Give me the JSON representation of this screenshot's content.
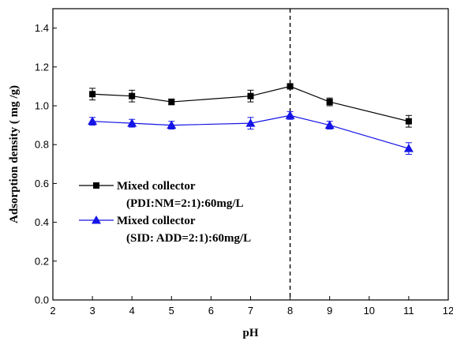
{
  "chart_data": {
    "type": "line",
    "xlabel": "pH",
    "ylabel": "Adsorption density ( mg /g)",
    "xlim": [
      2,
      12
    ],
    "ylim": [
      0.0,
      1.5
    ],
    "xticks": [
      2,
      3,
      4,
      5,
      6,
      7,
      8,
      9,
      10,
      11,
      12
    ],
    "yticks": [
      0.0,
      0.2,
      0.4,
      0.6,
      0.8,
      1.0,
      1.2,
      1.4
    ],
    "ytick_labels": [
      "0.0",
      "0.2",
      "0.4",
      "0.6",
      "0.8",
      "1.0",
      "1.2",
      "1.4"
    ],
    "xtick_labels": [
      "2",
      "3",
      "4",
      "5",
      "6",
      "7",
      "8",
      "9",
      "10",
      "11",
      "12"
    ],
    "reference_line": {
      "x": 8,
      "style": "dashed"
    },
    "series": [
      {
        "name": "Mixed collector",
        "name_line2": "(PDI:NM=2:1):60mg/L",
        "marker": "square",
        "color": "#000000",
        "x": [
          3,
          4,
          5,
          7,
          8,
          9,
          11
        ],
        "y": [
          1.06,
          1.05,
          1.02,
          1.05,
          1.1,
          1.02,
          0.92
        ],
        "err": [
          0.03,
          0.03,
          0.015,
          0.03,
          0.01,
          0.02,
          0.03
        ]
      },
      {
        "name": "Mixed collector",
        "name_line2": "(SID: ADD=2:1):60mg/L",
        "marker": "triangle",
        "color": "#1414e6",
        "x": [
          3,
          4,
          5,
          7,
          8,
          9,
          11
        ],
        "y": [
          0.92,
          0.91,
          0.9,
          0.91,
          0.95,
          0.9,
          0.78
        ],
        "err": [
          0.02,
          0.02,
          0.02,
          0.03,
          0.02,
          0.02,
          0.03
        ]
      }
    ],
    "legend_position": "lower-left",
    "grid": false
  }
}
